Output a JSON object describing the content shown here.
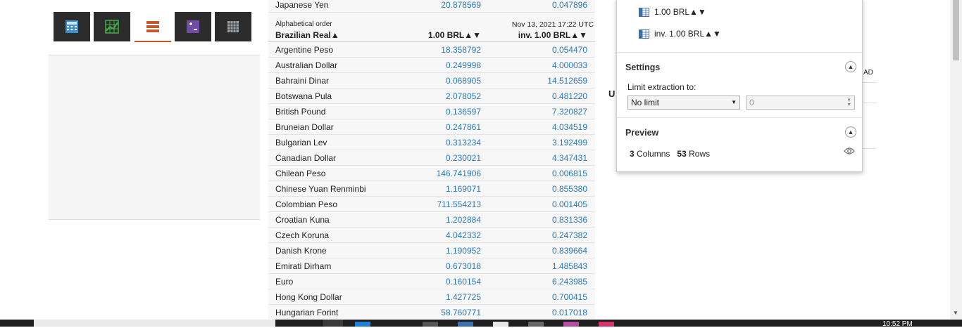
{
  "tools": [
    {
      "name": "calculator-icon",
      "color": "#3d8fd0"
    },
    {
      "name": "chart-grid-icon",
      "color": "#3fae49"
    },
    {
      "name": "table-list-icon",
      "color": "#c1592b"
    },
    {
      "name": "plus-minus-icon",
      "color": "#6f4ca6"
    },
    {
      "name": "spreadsheet-icon",
      "color": "#9aa0a6"
    }
  ],
  "table": {
    "top_row": {
      "name": "Japanese Yen",
      "v1": "20.878569",
      "v2": "0.047896"
    },
    "order_label": "Alphabetical order",
    "base_label": "Brazilian Real▲",
    "date_label": "Nov 13, 2021 17:22 UTC",
    "col1_label": "1.00 BRL▲▼",
    "col2_label": "inv. 1.00 BRL▲▼",
    "rows": [
      {
        "name": "Argentine Peso",
        "v1": "18.358792",
        "v2": "0.054470"
      },
      {
        "name": "Australian Dollar",
        "v1": "0.249998",
        "v2": "4.000033"
      },
      {
        "name": "Bahraini Dinar",
        "v1": "0.068905",
        "v2": "14.512659"
      },
      {
        "name": "Botswana Pula",
        "v1": "2.078052",
        "v2": "0.481220"
      },
      {
        "name": "British Pound",
        "v1": "0.136597",
        "v2": "7.320827"
      },
      {
        "name": "Bruneian Dollar",
        "v1": "0.247861",
        "v2": "4.034519"
      },
      {
        "name": "Bulgarian Lev",
        "v1": "0.313234",
        "v2": "3.192499"
      },
      {
        "name": "Canadian Dollar",
        "v1": "0.230021",
        "v2": "4.347431"
      },
      {
        "name": "Chilean Peso",
        "v1": "146.741906",
        "v2": "0.006815"
      },
      {
        "name": "Chinese Yuan Renminbi",
        "v1": "1.169071",
        "v2": "0.855380"
      },
      {
        "name": "Colombian Peso",
        "v1": "711.554213",
        "v2": "0.001405"
      },
      {
        "name": "Croatian Kuna",
        "v1": "1.202884",
        "v2": "0.831336"
      },
      {
        "name": "Czech Koruna",
        "v1": "4.042332",
        "v2": "0.247382"
      },
      {
        "name": "Danish Krone",
        "v1": "1.190952",
        "v2": "0.839664"
      },
      {
        "name": "Emirati Dirham",
        "v1": "0.673018",
        "v2": "1.485843"
      },
      {
        "name": "Euro",
        "v1": "0.160154",
        "v2": "6.243985"
      },
      {
        "name": "Hong Kong Dollar",
        "v1": "1.427725",
        "v2": "0.700415"
      },
      {
        "name": "Hungarian Forint",
        "v1": "58.760771",
        "v2": "0.017018"
      }
    ]
  },
  "behind": {
    "u_letter": "U",
    "ad_text": "AD"
  },
  "panel": {
    "columns": [
      "1.00 BRL▲▼",
      "inv. 1.00 BRL▲▼"
    ],
    "settings_title": "Settings",
    "limit_label": "Limit extraction to:",
    "limit_select_value": "No limit",
    "limit_number_value": "0",
    "preview_title": "Preview",
    "preview_columns_count": "3",
    "preview_columns_label": "Columns",
    "preview_rows_count": "53",
    "preview_rows_label": "Rows"
  },
  "taskbar": {
    "clock": "10:52 PM"
  }
}
